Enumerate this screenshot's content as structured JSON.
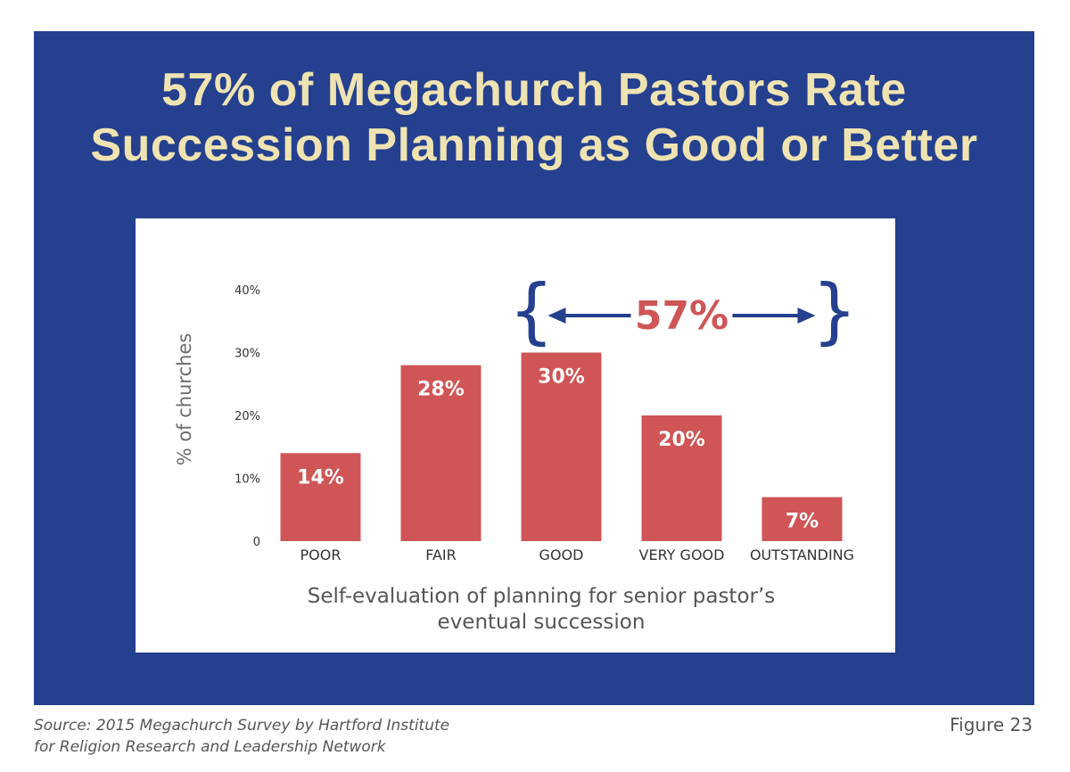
{
  "title": {
    "line1": "57% of Megachurch Pastors Rate",
    "line2": "Succession Planning as Good or Better"
  },
  "colors": {
    "panel": "#24408e",
    "title": "#efe3b2",
    "bar": "#cf5556",
    "bracket": "#24408e",
    "callout": "#cf5556"
  },
  "chart_data": {
    "type": "bar",
    "categories": [
      "POOR",
      "FAIR",
      "GOOD",
      "VERY GOOD",
      "OUTSTANDING"
    ],
    "values": [
      14,
      28,
      30,
      20,
      7
    ],
    "value_labels": [
      "14%",
      "28%",
      "30%",
      "20%",
      "7%"
    ],
    "ylabel": "% of churches",
    "xlabel": [
      "Self-evaluation of planning for senior pastor’s",
      "eventual succession"
    ],
    "yticks": [
      {
        "value": 0,
        "label": "0"
      },
      {
        "value": 10,
        "label": "10%"
      },
      {
        "value": 20,
        "label": "20%"
      },
      {
        "value": 30,
        "label": "30%"
      },
      {
        "value": 40,
        "label": "40%"
      }
    ],
    "ylim": [
      0,
      40
    ],
    "grid": false,
    "annotation": {
      "label": "57%",
      "spans": [
        "GOOD",
        "OUTSTANDING"
      ]
    }
  },
  "footer": {
    "source_line1": "Source: 2015 Megachurch Survey by Hartford Institute",
    "source_line2": "for Religion Research and Leadership Network",
    "figure": "Figure 23"
  }
}
